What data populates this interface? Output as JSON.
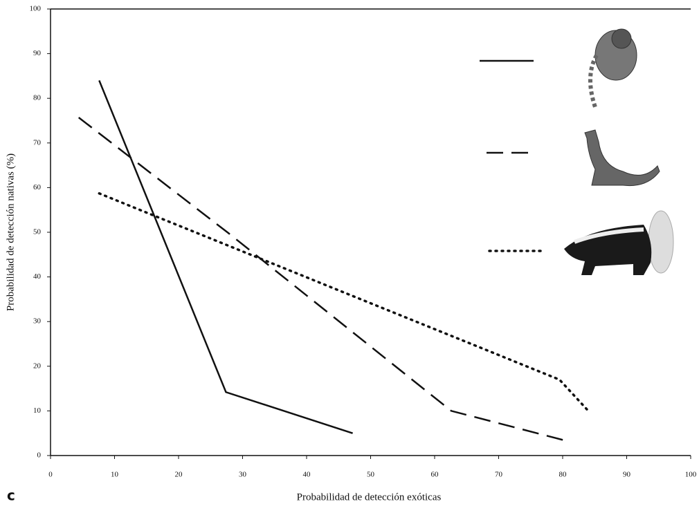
{
  "chart_data": {
    "type": "line",
    "panel_label": "c",
    "xlabel": "Probabilidad de detección exóticas",
    "ylabel": "Probabilidad de detección nativas (%)",
    "xlim": [
      0,
      100
    ],
    "ylim": [
      0,
      100
    ],
    "xticks": [
      0,
      10,
      20,
      30,
      40,
      50,
      60,
      70,
      80,
      90,
      100
    ],
    "yticks": [
      0,
      10,
      20,
      30,
      40,
      50,
      60,
      70,
      80,
      90,
      100
    ],
    "series": [
      {
        "color": "#111111",
        "style": "solid",
        "x": [
          7.6,
          27.4,
          47.2
        ],
        "values": [
          84,
          14.2,
          5
        ]
      },
      {
        "color": "#111111",
        "style": "dashed",
        "x": [
          4.4,
          27.8,
          62.6,
          81.1
        ],
        "values": [
          75.7,
          49.8,
          10,
          3.1
        ]
      },
      {
        "color": "#111111",
        "style": "dotted",
        "x": [
          7.6,
          79.5,
          84.2
        ],
        "values": [
          58.7,
          17,
          9.7
        ]
      }
    ]
  }
}
